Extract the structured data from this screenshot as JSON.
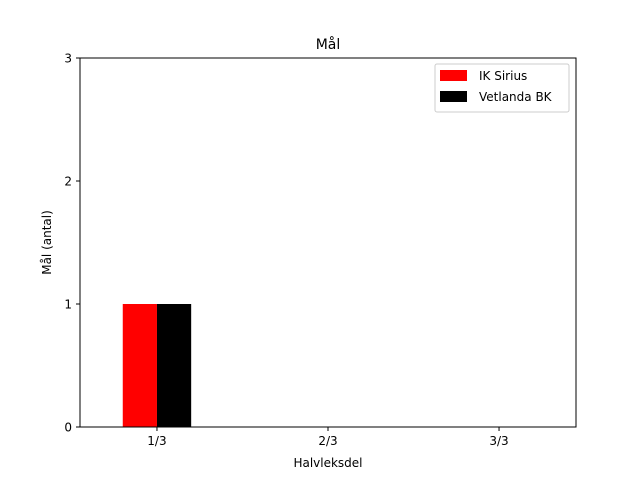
{
  "chart_data": {
    "type": "bar",
    "title": "Mål",
    "xlabel": "Halvleksdel",
    "ylabel": "Mål (antal)",
    "categories": [
      "1/3",
      "2/3",
      "3/3"
    ],
    "series": [
      {
        "name": "IK Sirius",
        "values": [
          1,
          0,
          0
        ],
        "color": "#ff0000"
      },
      {
        "name": "Vetlanda BK",
        "values": [
          1,
          0,
          0
        ],
        "color": "#000000"
      }
    ],
    "ylim": [
      0,
      3
    ],
    "yticks": [
      "0",
      "1",
      "2",
      "3"
    ],
    "grid": false,
    "legend_position": "top-right"
  }
}
